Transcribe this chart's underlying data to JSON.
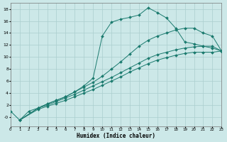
{
  "xlabel": "Humidex (Indice chaleur)",
  "bg_color": "#cce8e8",
  "line_color": "#1a7a6e",
  "grid_color": "#aacece",
  "xlim": [
    0,
    23
  ],
  "ylim": [
    -1.5,
    19
  ],
  "xticks": [
    0,
    1,
    2,
    3,
    4,
    5,
    6,
    7,
    8,
    9,
    10,
    11,
    12,
    13,
    14,
    15,
    16,
    17,
    18,
    19,
    20,
    21,
    22,
    23
  ],
  "yticks": [
    0,
    2,
    4,
    6,
    8,
    10,
    12,
    14,
    16,
    18
  ],
  "ytick_labels": [
    "-0",
    "2",
    "4",
    "6",
    "8",
    "10",
    "12",
    "14",
    "16",
    "18"
  ],
  "series": [
    {
      "x": [
        0,
        1,
        2,
        3,
        4,
        5,
        6,
        7,
        8,
        9,
        10,
        11,
        12,
        13,
        14,
        15,
        16,
        17,
        18,
        19,
        20,
        21,
        22,
        23
      ],
      "y": [
        1.0,
        -0.5,
        1.0,
        1.5,
        2.2,
        2.8,
        3.4,
        4.2,
        5.2,
        6.5,
        13.5,
        15.8,
        16.3,
        16.6,
        17.0,
        18.2,
        17.4,
        16.5,
        14.8,
        12.5,
        12.2,
        11.8,
        11.5,
        11.0
      ]
    },
    {
      "x": [
        1,
        3,
        4,
        5,
        6,
        7,
        8,
        9,
        10,
        11,
        12,
        13,
        14,
        15,
        16,
        17,
        18,
        19,
        20,
        21,
        22,
        23
      ],
      "y": [
        -0.5,
        1.5,
        2.2,
        2.8,
        3.4,
        4.2,
        5.0,
        5.8,
        6.8,
        8.0,
        9.2,
        10.5,
        11.8,
        12.8,
        13.5,
        14.0,
        14.5,
        14.8,
        14.8,
        14.0,
        13.5,
        11.0
      ]
    },
    {
      "x": [
        1,
        3,
        4,
        5,
        6,
        7,
        8,
        9,
        10,
        11,
        12,
        13,
        14,
        15,
        16,
        17,
        18,
        19,
        20,
        21,
        22,
        23
      ],
      "y": [
        -0.5,
        1.5,
        2.0,
        2.6,
        3.2,
        3.8,
        4.5,
        5.2,
        5.9,
        6.6,
        7.4,
        8.2,
        9.0,
        9.8,
        10.4,
        10.8,
        11.2,
        11.5,
        11.7,
        11.8,
        11.8,
        11.0
      ]
    },
    {
      "x": [
        1,
        3,
        4,
        5,
        6,
        7,
        8,
        9,
        10,
        11,
        12,
        13,
        14,
        15,
        16,
        17,
        18,
        19,
        20,
        21,
        22,
        23
      ],
      "y": [
        -0.5,
        1.3,
        1.8,
        2.3,
        2.8,
        3.4,
        4.0,
        4.6,
        5.3,
        6.0,
        6.7,
        7.5,
        8.2,
        8.9,
        9.5,
        9.9,
        10.3,
        10.6,
        10.8,
        10.8,
        10.8,
        11.0
      ]
    }
  ]
}
